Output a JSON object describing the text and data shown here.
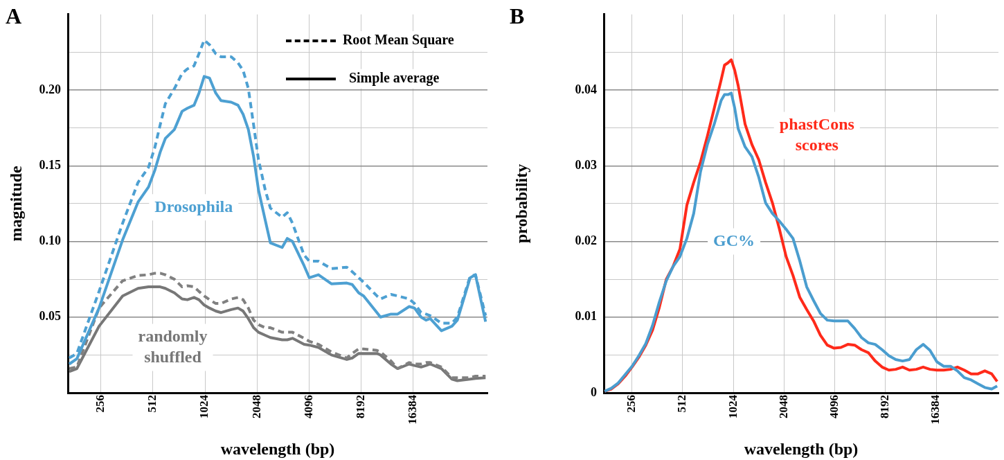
{
  "chart_data": [
    {
      "type": "line",
      "title": "A",
      "xlabel": "wavelength (bp)",
      "ylabel": "magnitude",
      "log": "x",
      "grid": true,
      "marker": "none",
      "x": [
        168,
        186,
        250,
        342,
        420,
        483,
        525,
        564,
        604,
        682,
        755,
        810,
        885,
        945,
        1013,
        1087,
        1182,
        1269,
        1452,
        1589,
        1701,
        1824,
        1956,
        2088,
        2284,
        2447,
        2860,
        3062,
        3283,
        3830,
        4108,
        4637,
        5511,
        6766,
        7271,
        7929,
        8464,
        10107,
        10588,
        12178,
        13307,
        15521,
        16645,
        18194,
        19415,
        20536,
        23839,
        27418,
        29466,
        34944,
        37504,
        42906
      ],
      "xlim": [
        165,
        44000
      ],
      "xticks": [
        256,
        512,
        1024,
        2048,
        4096,
        8192,
        16384
      ],
      "ylim": [
        0,
        0.25
      ],
      "yticks": [
        {
          "value": 0.025,
          "label": null
        },
        {
          "value": 0.05,
          "label": "0.05"
        },
        {
          "value": 0.075,
          "label": null
        },
        {
          "value": 0.1,
          "label": "0.10"
        },
        {
          "value": 0.125,
          "label": null
        },
        {
          "value": 0.15,
          "label": "0.15"
        },
        {
          "value": 0.175,
          "label": null
        },
        {
          "value": 0.2,
          "label": "0.20"
        },
        {
          "value": 0.225,
          "label": null
        }
      ],
      "series": [
        {
          "color": "#4da0d2",
          "line_style": "dashed",
          "values": [
            0.023,
            0.026,
            0.067,
            0.112,
            0.139,
            0.149,
            0.162,
            0.177,
            0.191,
            0.201,
            0.211,
            0.214,
            0.216,
            0.224,
            0.233,
            0.23,
            0.224,
            0.222,
            0.222,
            0.218,
            0.213,
            0.201,
            0.177,
            0.154,
            0.134,
            0.122,
            0.116,
            0.119,
            0.112,
            0.091,
            0.087,
            0.087,
            0.082,
            0.083,
            0.08,
            0.076,
            0.073,
            0.064,
            0.062,
            0.065,
            0.064,
            0.062,
            0.059,
            0.053,
            0.052,
            0.051,
            0.046,
            0.046,
            0.05,
            0.077,
            0.078,
            0.051
          ]
        },
        {
          "name": "Drosophila",
          "color": "#4da0d2",
          "line_style": "solid",
          "values": [
            0.019,
            0.0225,
            0.056,
            0.101,
            0.126,
            0.136,
            0.147,
            0.159,
            0.168,
            0.174,
            0.186,
            0.188,
            0.19,
            0.198,
            0.209,
            0.208,
            0.198,
            0.193,
            0.192,
            0.19,
            0.184,
            0.174,
            0.156,
            0.134,
            0.114,
            0.099,
            0.096,
            0.102,
            0.1,
            0.084,
            0.076,
            0.078,
            0.072,
            0.0725,
            0.0715,
            0.066,
            0.064,
            0.053,
            0.05,
            0.052,
            0.052,
            0.057,
            0.056,
            0.05,
            0.048,
            0.049,
            0.041,
            0.044,
            0.048,
            0.076,
            0.078,
            0.047
          ]
        },
        {
          "color": "#808080",
          "line_style": "dashed",
          "values": [
            0.016,
            0.017,
            0.056,
            0.074,
            0.0775,
            0.078,
            0.079,
            0.079,
            0.078,
            0.075,
            0.07,
            0.0707,
            0.07,
            0.067,
            0.064,
            0.0615,
            0.059,
            0.059,
            0.062,
            0.063,
            0.0615,
            0.056,
            0.048,
            0.045,
            0.043,
            0.043,
            0.04,
            0.04,
            0.04,
            0.036,
            0.034,
            0.032,
            0.027,
            0.023,
            0.026,
            0.029,
            0.029,
            0.028,
            0.027,
            0.021,
            0.016,
            0.02,
            0.019,
            0.019,
            0.02,
            0.02,
            0.017,
            0.01,
            0.01,
            0.01,
            0.011,
            0.011
          ]
        },
        {
          "name": "randomly shuffled",
          "color": "#777777",
          "line_style": "solid",
          "values": [
            0.014,
            0.016,
            0.044,
            0.064,
            0.069,
            0.07,
            0.07,
            0.07,
            0.069,
            0.066,
            0.062,
            0.0615,
            0.063,
            0.0615,
            0.058,
            0.056,
            0.054,
            0.053,
            0.055,
            0.056,
            0.054,
            0.049,
            0.043,
            0.04,
            0.038,
            0.0365,
            0.035,
            0.035,
            0.036,
            0.032,
            0.0315,
            0.03,
            0.025,
            0.022,
            0.023,
            0.026,
            0.026,
            0.026,
            0.025,
            0.019,
            0.016,
            0.019,
            0.018,
            0.017,
            0.018,
            0.019,
            0.016,
            0.009,
            0.008,
            0.009,
            0.0095,
            0.01
          ]
        }
      ],
      "annotations": [
        "Root Mean Square",
        "Simple average"
      ]
    },
    {
      "type": "line",
      "title": "B",
      "xlabel": "wavelength (bp)",
      "ylabel": "probability",
      "log": "x",
      "grid": true,
      "marker": "none",
      "x": [
        176,
        193,
        212,
        233,
        256,
        281,
        309,
        339,
        372,
        409,
        449,
        493,
        542,
        595,
        653,
        717,
        788,
        865,
        907,
        950,
        995,
        1043,
        1093,
        1201,
        1319,
        1448,
        1590,
        1746,
        1918,
        2106,
        2313,
        2540,
        2790,
        3064,
        3364,
        3695,
        4058,
        4457,
        4894,
        5375,
        5903,
        6482,
        7119,
        7818,
        8586,
        9429,
        10355,
        11372,
        12489,
        13716,
        15063,
        16541,
        18166,
        19950,
        21909,
        24061,
        26424,
        29019,
        31869,
        34999,
        37723
      ],
      "xlim": [
        174,
        38400
      ],
      "xticks": [
        256,
        512,
        1024,
        2048,
        4096,
        8192,
        16384
      ],
      "ylim": [
        0,
        0.05
      ],
      "yticks": [
        0,
        {
          "value": 0.005,
          "label": null
        },
        0.01,
        {
          "value": 0.015,
          "label": null
        },
        0.02,
        {
          "value": 0.025,
          "label": null
        },
        0.03,
        {
          "value": 0.035,
          "label": null
        },
        0.04,
        {
          "value": 0.045,
          "label": null
        }
      ],
      "series": [
        {
          "name": "GC%",
          "color": "#4a9dcf",
          "line_style": "solid",
          "values": [
            0.0002,
            0.0006,
            0.0013,
            0.0024,
            0.0035,
            0.0049,
            0.0065,
            0.0089,
            0.012,
            0.0148,
            0.0167,
            0.018,
            0.0204,
            0.0237,
            0.0292,
            0.0328,
            0.0355,
            0.0386,
            0.0394,
            0.0394,
            0.0396,
            0.0376,
            0.0349,
            0.0325,
            0.0312,
            0.0285,
            0.0251,
            0.0237,
            0.0227,
            0.0216,
            0.0204,
            0.0174,
            0.014,
            0.0122,
            0.0105,
            0.0096,
            0.0095,
            0.0095,
            0.0095,
            0.0085,
            0.0073,
            0.0066,
            0.0064,
            0.0057,
            0.0049,
            0.0044,
            0.0042,
            0.0044,
            0.0057,
            0.0064,
            0.0056,
            0.0041,
            0.0035,
            0.0035,
            0.0029,
            0.002,
            0.0017,
            0.0012,
            0.0007,
            0.0005,
            0.0009
          ]
        },
        {
          "name": "phastCons scores",
          "color": "#ff2a1a",
          "line_style": "solid",
          "values": [
            0.0002,
            0.0005,
            0.0012,
            0.0022,
            0.0034,
            0.0047,
            0.0063,
            0.0083,
            0.0113,
            0.015,
            0.0167,
            0.019,
            0.0248,
            0.0278,
            0.0305,
            0.0339,
            0.0376,
            0.0413,
            0.0433,
            0.0436,
            0.044,
            0.0426,
            0.0406,
            0.0355,
            0.0328,
            0.0308,
            0.0278,
            0.0251,
            0.0217,
            0.018,
            0.0155,
            0.0126,
            0.011,
            0.0095,
            0.0076,
            0.0063,
            0.0059,
            0.006,
            0.0064,
            0.0063,
            0.0057,
            0.0053,
            0.0042,
            0.0034,
            0.003,
            0.0031,
            0.0034,
            0.003,
            0.0031,
            0.0034,
            0.0031,
            0.003,
            0.003,
            0.0031,
            0.0034,
            0.003,
            0.0025,
            0.0025,
            0.0029,
            0.0025,
            0.0015
          ]
        }
      ]
    }
  ]
}
